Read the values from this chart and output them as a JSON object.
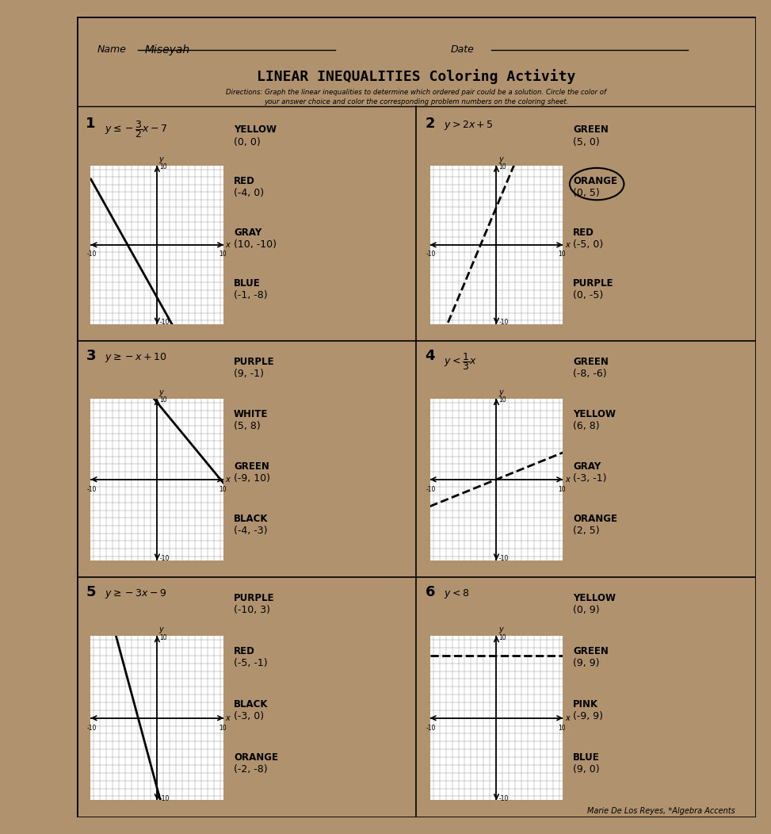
{
  "title": "LINEAR INEQUALITIES Coloring Activity",
  "directions_line1": "Directions: Graph the linear inequalities to determine which ordered pair could be a solution. Circle the color of",
  "directions_line2": "your answer choice and color the corresponding problem numbers on the coloring sheet.",
  "name_label": "Name",
  "name_value": "Miseyah",
  "date_label": "Date",
  "wood_bg": "#b8956a",
  "paper_color": "#ffffff",
  "problems": [
    {
      "num": "1",
      "ineq_tex": "$y \\leq -\\dfrac{3}{2}x - 7$",
      "choices": [
        {
          "color_name": "YELLOW",
          "point": "(0, 0)"
        },
        {
          "color_name": "RED",
          "point": "(-4, 0)"
        },
        {
          "color_name": "GRAY",
          "point": "(10, -10)"
        },
        {
          "color_name": "BLUE",
          "point": "(-1, -8)"
        }
      ],
      "circled": null,
      "line_dashed": false,
      "line_slope": -1.5,
      "line_intercept": -7
    },
    {
      "num": "2",
      "ineq_tex": "$y > 2x + 5$",
      "choices": [
        {
          "color_name": "GREEN",
          "point": "(5, 0)"
        },
        {
          "color_name": "ORANGE",
          "point": "(0, 5)"
        },
        {
          "color_name": "RED",
          "point": "(-5, 0)"
        },
        {
          "color_name": "PURPLE",
          "point": "(0, -5)"
        }
      ],
      "circled": "ORANGE",
      "line_dashed": true,
      "line_slope": 2,
      "line_intercept": 5
    },
    {
      "num": "3",
      "ineq_tex": "$y \\geq -x + 10$",
      "choices": [
        {
          "color_name": "PURPLE",
          "point": "(9, -1)"
        },
        {
          "color_name": "WHITE",
          "point": "(5, 8)"
        },
        {
          "color_name": "GREEN",
          "point": "(-9, 10)"
        },
        {
          "color_name": "BLACK",
          "point": "(-4, -3)"
        }
      ],
      "circled": null,
      "line_dashed": false,
      "line_slope": -1,
      "line_intercept": 10
    },
    {
      "num": "4",
      "ineq_tex": "$y < \\dfrac{1}{3}x$",
      "choices": [
        {
          "color_name": "GREEN",
          "point": "(-8, -6)"
        },
        {
          "color_name": "YELLOW",
          "point": "(6, 8)"
        },
        {
          "color_name": "GRAY",
          "point": "(-3, -1)"
        },
        {
          "color_name": "ORANGE",
          "point": "(2, 5)"
        }
      ],
      "circled": null,
      "line_dashed": true,
      "line_slope": 0.3333,
      "line_intercept": 0
    },
    {
      "num": "5",
      "ineq_tex": "$y \\geq -3x - 9$",
      "choices": [
        {
          "color_name": "PURPLE",
          "point": "(-10, 3)"
        },
        {
          "color_name": "RED",
          "point": "(-5, -1)"
        },
        {
          "color_name": "BLACK",
          "point": "(-3, 0)"
        },
        {
          "color_name": "ORANGE",
          "point": "(-2, -8)"
        }
      ],
      "circled": null,
      "line_dashed": false,
      "line_slope": -3,
      "line_intercept": -9
    },
    {
      "num": "6",
      "ineq_tex": "$y < 8$",
      "choices": [
        {
          "color_name": "YELLOW",
          "point": "(0, 9)"
        },
        {
          "color_name": "GREEN",
          "point": "(9, 9)"
        },
        {
          "color_name": "PINK",
          "point": "(-9, 9)"
        },
        {
          "color_name": "BLUE",
          "point": "(9, 0)"
        }
      ],
      "circled": null,
      "line_dashed": true,
      "line_slope": 0,
      "line_intercept": 8
    }
  ],
  "attribution": "Marie De Los Reyes, *Algebra Accents"
}
